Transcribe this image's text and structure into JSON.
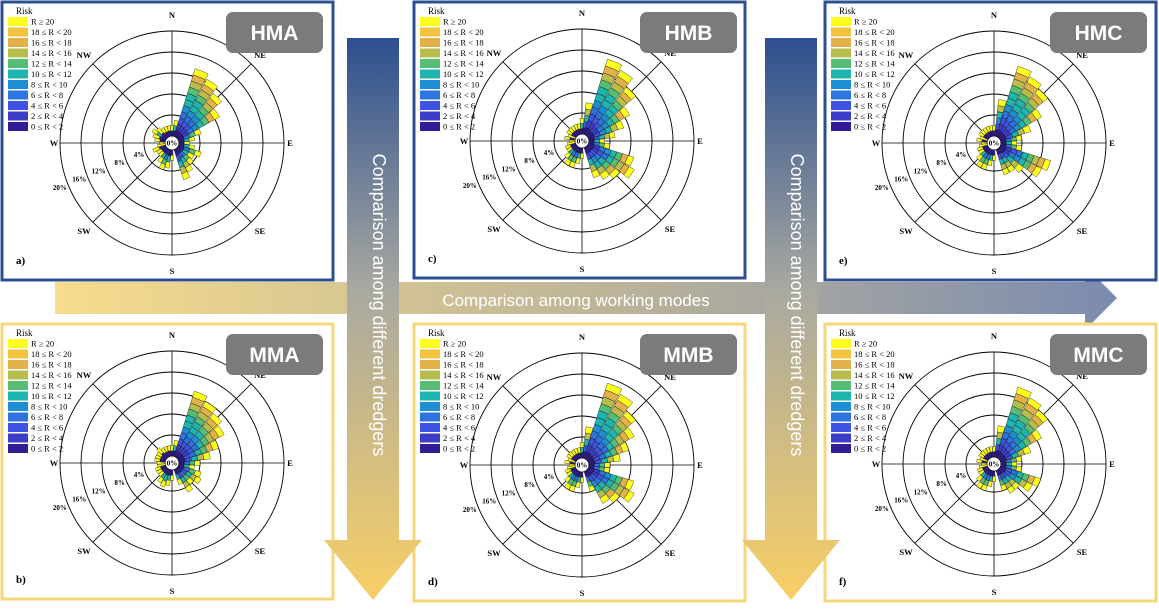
{
  "legend": {
    "title": "Risk",
    "labels": [
      "R ≥ 20",
      "18 ≤ R < 20",
      "16 ≤ R < 18",
      "14 ≤ R < 16",
      "12 ≤ R < 14",
      "10 ≤ R < 12",
      "8 ≤ R < 10",
      "6 ≤ R < 8",
      "4 ≤ R < 6",
      "2 ≤ R < 4",
      "0 ≤ R < 2"
    ],
    "colors": [
      "#ffff1e",
      "#f2c43e",
      "#e4b04a",
      "#b7bd4c",
      "#55be74",
      "#1db5ae",
      "#1c8ed6",
      "#2d74e0",
      "#3e52e3",
      "#3c3ecb",
      "#321c96"
    ]
  },
  "arrows": {
    "horizontal_text": "Comparison among working modes",
    "vertical_text": "Comparison among different dredgers"
  },
  "directions": [
    "N",
    "NE",
    "E",
    "SE",
    "S",
    "SW",
    "W",
    "NW"
  ],
  "ring_labels": [
    "4%",
    "8%",
    "12%",
    "16%",
    "20%"
  ],
  "center_label": "0%",
  "chart_data": [
    {
      "type": "polar-stacked-bar",
      "panel": "a)",
      "tag": "HMA",
      "border": "#2c4f8f",
      "radial_max": 20,
      "ring_ticks": [
        4,
        8,
        12,
        16,
        20
      ],
      "directions_deg": [
        0,
        11.25,
        22.5,
        33.75,
        45,
        56.25,
        67.5,
        78.75,
        90,
        101.25,
        112.5,
        123.75,
        135,
        146.25,
        157.5,
        180,
        191.25,
        202.5,
        213.75,
        225,
        236.25,
        247.5,
        258.75,
        270,
        281.25,
        292.5,
        303.75,
        315,
        326.25,
        337.5,
        348.75
      ],
      "totals": [
        2,
        3,
        13.5,
        12.5,
        11,
        9,
        4.5,
        3,
        2,
        3,
        4.5,
        3.5,
        4,
        5,
        6,
        2,
        3.5,
        4,
        3,
        2,
        2,
        2.5,
        1.5,
        1,
        2,
        2.5,
        3,
        2.5,
        2,
        2,
        2
      ]
    },
    {
      "type": "polar-stacked-bar",
      "panel": "b)",
      "tag": "MMA",
      "border": "#f5d67a",
      "radial_max": 20,
      "ring_ticks": [
        4,
        8,
        12,
        16,
        20
      ],
      "directions_deg": [
        0,
        11.25,
        22.5,
        33.75,
        45,
        56.25,
        67.5,
        78.75,
        90,
        101.25,
        112.5,
        123.75,
        135,
        146.25,
        157.5,
        180,
        191.25,
        202.5,
        213.75,
        225,
        236.25,
        247.5,
        258.75,
        270,
        281.25,
        292.5,
        303.75,
        315,
        326.25,
        337.5,
        348.75
      ],
      "totals": [
        2,
        3,
        13,
        12,
        11,
        10,
        8,
        6,
        4,
        3,
        4.5,
        5,
        4,
        5,
        3,
        2,
        3,
        3.5,
        3,
        2,
        2,
        2,
        1.5,
        1.5,
        2,
        2,
        2,
        2.5,
        2,
        2,
        2
      ]
    },
    {
      "type": "polar-stacked-bar",
      "panel": "c)",
      "tag": "HMB",
      "border": "#2c4f8f",
      "radial_max": 20,
      "ring_ticks": [
        4,
        8,
        12,
        16,
        20
      ],
      "directions_deg": [
        0,
        11.25,
        22.5,
        33.75,
        45,
        56.25,
        67.5,
        78.75,
        90,
        101.25,
        112.5,
        123.75,
        135,
        146.25,
        157.5,
        180,
        191.25,
        202.5,
        213.75,
        225,
        236.25,
        247.5,
        258.75,
        270,
        281.25,
        292.5,
        303.75,
        315,
        326.25,
        337.5,
        348.75
      ],
      "totals": [
        3,
        6,
        15,
        14,
        12,
        9,
        7,
        5,
        3,
        4,
        9,
        10,
        8,
        7,
        6,
        2,
        3,
        4,
        4,
        3,
        2,
        2,
        1.5,
        1,
        2,
        1.5,
        2,
        2,
        2,
        2,
        2
      ]
    },
    {
      "type": "polar-stacked-bar",
      "panel": "d)",
      "tag": "MMB",
      "border": "#f5d67a",
      "radial_max": 20,
      "ring_ticks": [
        4,
        8,
        12,
        16,
        20
      ],
      "directions_deg": [
        0,
        11.25,
        22.5,
        33.75,
        45,
        56.25,
        67.5,
        78.75,
        90,
        101.25,
        112.5,
        123.75,
        135,
        146.25,
        157.5,
        180,
        191.25,
        202.5,
        213.75,
        225,
        236.25,
        247.5,
        258.75,
        270,
        281.25,
        292.5,
        303.75,
        315,
        326.25,
        337.5,
        348.75
      ],
      "totals": [
        3,
        6,
        15,
        14,
        12,
        10,
        8,
        6,
        4,
        4,
        9,
        10,
        8,
        7,
        4,
        2,
        3,
        4,
        4,
        3,
        2,
        2,
        1.5,
        1,
        2,
        1.5,
        2,
        2,
        2,
        2,
        2
      ]
    },
    {
      "type": "polar-stacked-bar",
      "panel": "e)",
      "tag": "HMC",
      "border": "#2c4f8f",
      "radial_max": 20,
      "ring_ticks": [
        4,
        8,
        12,
        16,
        20
      ],
      "directions_deg": [
        0,
        11.25,
        22.5,
        33.75,
        45,
        56.25,
        67.5,
        78.75,
        90,
        101.25,
        112.5,
        123.75,
        135,
        146.25,
        157.5,
        180,
        191.25,
        202.5,
        213.75,
        225,
        236.25,
        247.5,
        258.75,
        270,
        281.25,
        292.5,
        303.75,
        315,
        326.25,
        337.5,
        348.75
      ],
      "totals": [
        2,
        7,
        14,
        13,
        12,
        9,
        6,
        4,
        3,
        4,
        10,
        9,
        6,
        5,
        5,
        2,
        3,
        4,
        4,
        3,
        2,
        2,
        1.5,
        1,
        2,
        1.5,
        2,
        2,
        2,
        2,
        2
      ]
    },
    {
      "type": "polar-stacked-bar",
      "panel": "f)",
      "tag": "MMC",
      "border": "#f5d67a",
      "radial_max": 20,
      "ring_ticks": [
        4,
        8,
        12,
        16,
        20
      ],
      "directions_deg": [
        0,
        11.25,
        22.5,
        33.75,
        45,
        56.25,
        67.5,
        78.75,
        90,
        101.25,
        112.5,
        123.75,
        135,
        146.25,
        157.5,
        180,
        191.25,
        202.5,
        213.75,
        225,
        236.25,
        247.5,
        258.75,
        270,
        281.25,
        292.5,
        303.75,
        315,
        326.25,
        337.5,
        348.75
      ],
      "totals": [
        2,
        6,
        14,
        13,
        12,
        9,
        6,
        4,
        3,
        4,
        8,
        7,
        5,
        5,
        4,
        2,
        3,
        4,
        4,
        3,
        2,
        2,
        1.5,
        1,
        2,
        1.5,
        2,
        2,
        2,
        2,
        2
      ]
    }
  ]
}
